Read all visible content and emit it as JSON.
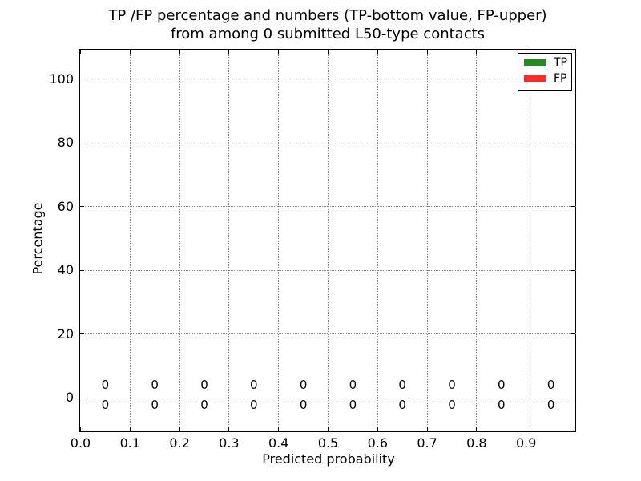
{
  "chart_data": {
    "type": "bar",
    "title_line1": "TP /FP percentage and numbers (TP-bottom value, FP-upper)",
    "title_line2": "from among 0 submitted L50-type contacts",
    "xlabel": "Predicted probability",
    "ylabel": "Percentage",
    "xlim": [
      0.0,
      1.0
    ],
    "ylim": [
      -10,
      110
    ],
    "x_ticks": [
      {
        "value": 0.0,
        "label": "0.0"
      },
      {
        "value": 0.1,
        "label": "0.1"
      },
      {
        "value": 0.2,
        "label": "0.2"
      },
      {
        "value": 0.3,
        "label": "0.3"
      },
      {
        "value": 0.4,
        "label": "0.4"
      },
      {
        "value": 0.5,
        "label": "0.5"
      },
      {
        "value": 0.6,
        "label": "0.6"
      },
      {
        "value": 0.7,
        "label": "0.7"
      },
      {
        "value": 0.8,
        "label": "0.8"
      },
      {
        "value": 0.9,
        "label": "0.9"
      }
    ],
    "y_ticks": [
      {
        "value": 0,
        "label": "0"
      },
      {
        "value": 20,
        "label": "20"
      },
      {
        "value": 40,
        "label": "40"
      },
      {
        "value": 60,
        "label": "60"
      },
      {
        "value": 80,
        "label": "80"
      },
      {
        "value": 100,
        "label": "100"
      }
    ],
    "grid": {
      "style": "dotted",
      "color": "#888888"
    },
    "bin_centers": [
      0.05,
      0.15,
      0.25,
      0.35,
      0.45,
      0.55,
      0.65,
      0.75,
      0.85,
      0.95
    ],
    "series": [
      {
        "name": "TP",
        "color": "#228b22",
        "annotation_row": "bottom",
        "values": [
          0,
          0,
          0,
          0,
          0,
          0,
          0,
          0,
          0,
          0
        ]
      },
      {
        "name": "FP",
        "color": "#ff2a2a",
        "annotation_row": "upper",
        "values": [
          0,
          0,
          0,
          0,
          0,
          0,
          0,
          0,
          0,
          0
        ]
      }
    ],
    "legend": {
      "position": "upper right",
      "entries": [
        {
          "label": "TP",
          "color": "#228b22"
        },
        {
          "label": "FP",
          "color": "#ff2a2a"
        }
      ]
    }
  }
}
